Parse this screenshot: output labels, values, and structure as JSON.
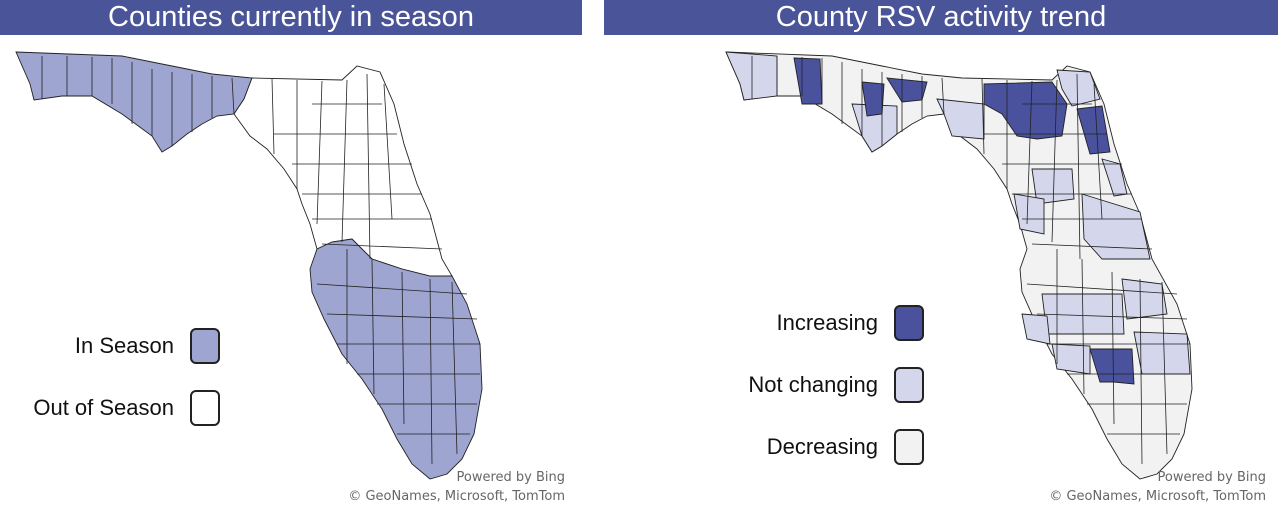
{
  "colors": {
    "banner": "#4a5599",
    "in_season": "#9ea5d0",
    "out_of_season": "#ffffff",
    "increasing": "#4a529e",
    "not_changing": "#d4d7ec",
    "decreasing": "#f2f2f2"
  },
  "left_panel": {
    "title": "Counties currently in season",
    "legend": [
      {
        "label": "In Season",
        "color": "#9ea5d0"
      },
      {
        "label": "Out of Season",
        "color": "#ffffff"
      }
    ],
    "credit_line1": "Powered by Bing",
    "credit_line2": "© GeoNames, Microsoft, TomTom"
  },
  "right_panel": {
    "title": "County RSV activity trend",
    "legend": [
      {
        "label": "Increasing",
        "color": "#4a529e"
      },
      {
        "label": "Not changing",
        "color": "#d4d7ec"
      },
      {
        "label": "Decreasing",
        "color": "#f2f2f2"
      }
    ],
    "credit_line1": "Powered by Bing",
    "credit_line2": "© GeoNames, Microsoft, TomTom"
  }
}
